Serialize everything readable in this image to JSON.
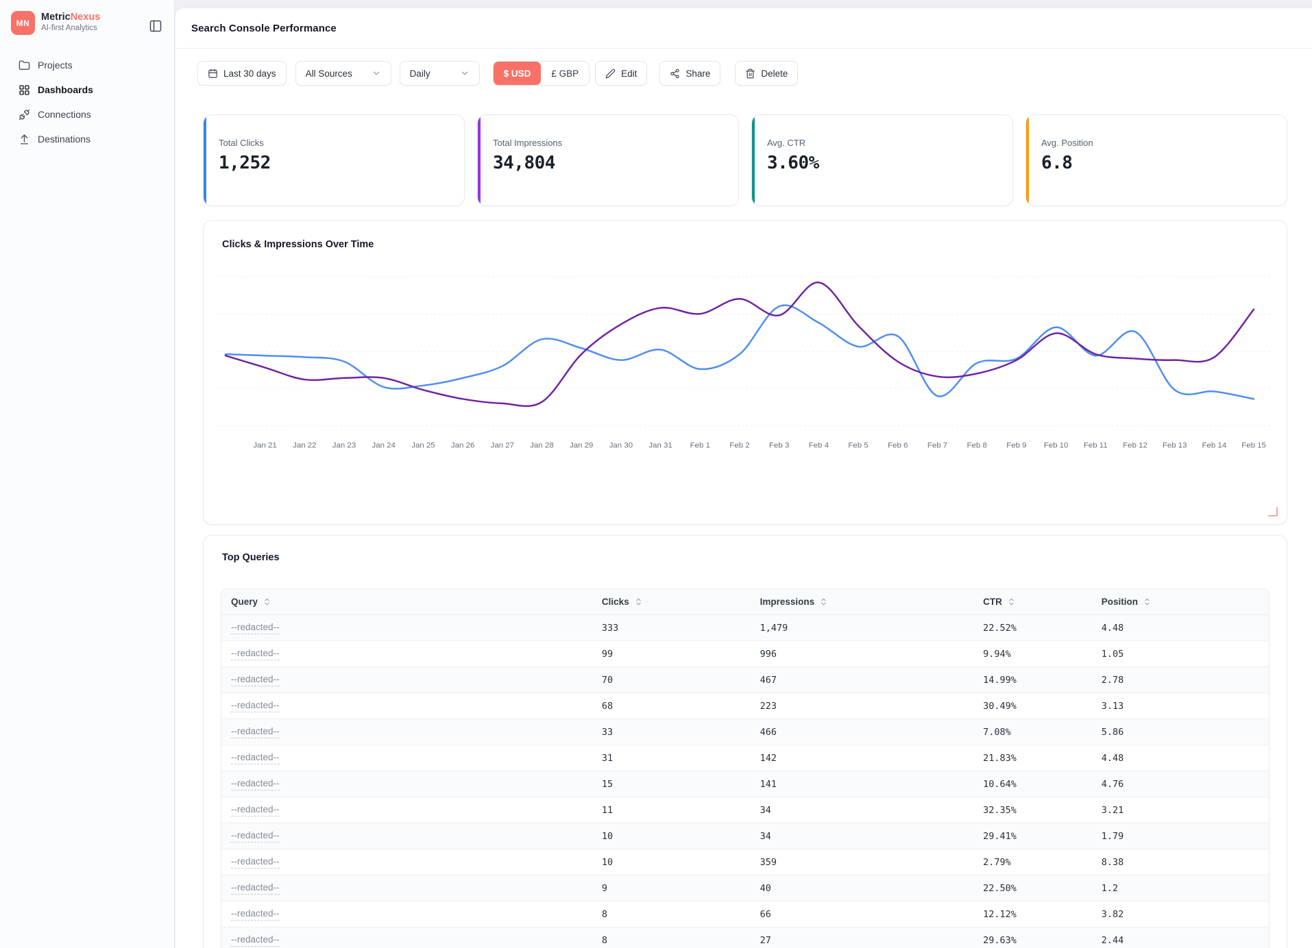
{
  "colors": {
    "accent_coral": "#f87168",
    "clicks_line": "#4f8df2",
    "impressions_line": "#6f23a2",
    "grid_line": "#dde2e8"
  },
  "sidebar": {
    "logo_initials": "MN",
    "brand_primary": "Metric",
    "brand_accent": "Nexus",
    "tagline": "AI-first Analytics",
    "items": [
      {
        "label": "Projects",
        "icon": "folder-icon",
        "active": false
      },
      {
        "label": "Dashboards",
        "icon": "grid-icon",
        "active": true
      },
      {
        "label": "Connections",
        "icon": "plug-icon",
        "active": false
      },
      {
        "label": "Destinations",
        "icon": "upload-icon",
        "active": false
      }
    ]
  },
  "header": {
    "title": "Search Console Performance"
  },
  "toolbar": {
    "date_range": "Last 30 days",
    "source_filter": "All Sources",
    "granularity": "Daily",
    "currency_usd": "$ USD",
    "currency_gbp": "£ GBP",
    "edit_label": "Edit",
    "share_label": "Share",
    "delete_label": "Delete"
  },
  "stats": [
    {
      "label": "Total Clicks",
      "value": "1,252",
      "accent": "#3b82f6"
    },
    {
      "label": "Total Impressions",
      "value": "34,804",
      "accent": "#9333ea"
    },
    {
      "label": "Avg. CTR",
      "value": "3.60%",
      "accent": "#0d9488"
    },
    {
      "label": "Avg. Position",
      "value": "6.8",
      "accent": "#f59e0b"
    }
  ],
  "chart_data": {
    "type": "line",
    "title": "Clicks & Impressions Over Time",
    "grid": "horizontal-dotted",
    "y_axis_visible": false,
    "y_range": [
      0,
      100
    ],
    "x_labels": [
      "",
      "Jan 21",
      "Jan 22",
      "Jan 23",
      "Jan 24",
      "Jan 25",
      "Jan 26",
      "Jan 27",
      "Jan 28",
      "Jan 29",
      "Jan 30",
      "Jan 31",
      "Feb 1",
      "Feb 2",
      "Feb 3",
      "Feb 4",
      "Feb 5",
      "Feb 6",
      "Feb 7",
      "Feb 8",
      "Feb 9",
      "Feb 10",
      "Feb 11",
      "Feb 12",
      "Feb 13",
      "Feb 14",
      "Feb 15"
    ],
    "series": [
      {
        "name": "Clicks",
        "color": "#4f8df2",
        "values": [
          48,
          47,
          46,
          43,
          26,
          27,
          32,
          40,
          58,
          52,
          44,
          51,
          38,
          48,
          80,
          69,
          53,
          60,
          20,
          42,
          45,
          66,
          47,
          63,
          24,
          23,
          18
        ]
      },
      {
        "name": "Impressions",
        "color": "#6f23a2",
        "values": [
          47,
          39,
          31,
          32,
          32,
          24,
          18,
          15,
          16,
          48,
          68,
          79,
          75,
          85,
          74,
          96,
          67,
          43,
          33,
          35,
          44,
          62,
          48,
          45,
          44,
          46,
          78
        ]
      }
    ]
  },
  "table": {
    "title": "Top Queries",
    "columns": [
      "Query",
      "Clicks",
      "Impressions",
      "CTR",
      "Position"
    ],
    "col_widths": [
      "35.4%",
      "15.1%",
      "21.3%",
      "11.3%",
      "16.9%"
    ],
    "redacted_label": "--redacted--",
    "rows": [
      {
        "query": "--redacted--",
        "clicks": "333",
        "impressions": "1,479",
        "ctr": "22.52%",
        "position": "4.48"
      },
      {
        "query": "--redacted--",
        "clicks": "99",
        "impressions": "996",
        "ctr": "9.94%",
        "position": "1.05"
      },
      {
        "query": "--redacted--",
        "clicks": "70",
        "impressions": "467",
        "ctr": "14.99%",
        "position": "2.78"
      },
      {
        "query": "--redacted--",
        "clicks": "68",
        "impressions": "223",
        "ctr": "30.49%",
        "position": "3.13"
      },
      {
        "query": "--redacted--",
        "clicks": "33",
        "impressions": "466",
        "ctr": "7.08%",
        "position": "5.86"
      },
      {
        "query": "--redacted--",
        "clicks": "31",
        "impressions": "142",
        "ctr": "21.83%",
        "position": "4.48"
      },
      {
        "query": "--redacted--",
        "clicks": "15",
        "impressions": "141",
        "ctr": "10.64%",
        "position": "4.76"
      },
      {
        "query": "--redacted--",
        "clicks": "11",
        "impressions": "34",
        "ctr": "32.35%",
        "position": "3.21"
      },
      {
        "query": "--redacted--",
        "clicks": "10",
        "impressions": "34",
        "ctr": "29.41%",
        "position": "1.79"
      },
      {
        "query": "--redacted--",
        "clicks": "10",
        "impressions": "359",
        "ctr": "2.79%",
        "position": "8.38"
      },
      {
        "query": "--redacted--",
        "clicks": "9",
        "impressions": "40",
        "ctr": "22.50%",
        "position": "1.2"
      },
      {
        "query": "--redacted--",
        "clicks": "8",
        "impressions": "66",
        "ctr": "12.12%",
        "position": "3.82"
      },
      {
        "query": "--redacted--",
        "clicks": "8",
        "impressions": "27",
        "ctr": "29.63%",
        "position": "2.44"
      }
    ]
  }
}
